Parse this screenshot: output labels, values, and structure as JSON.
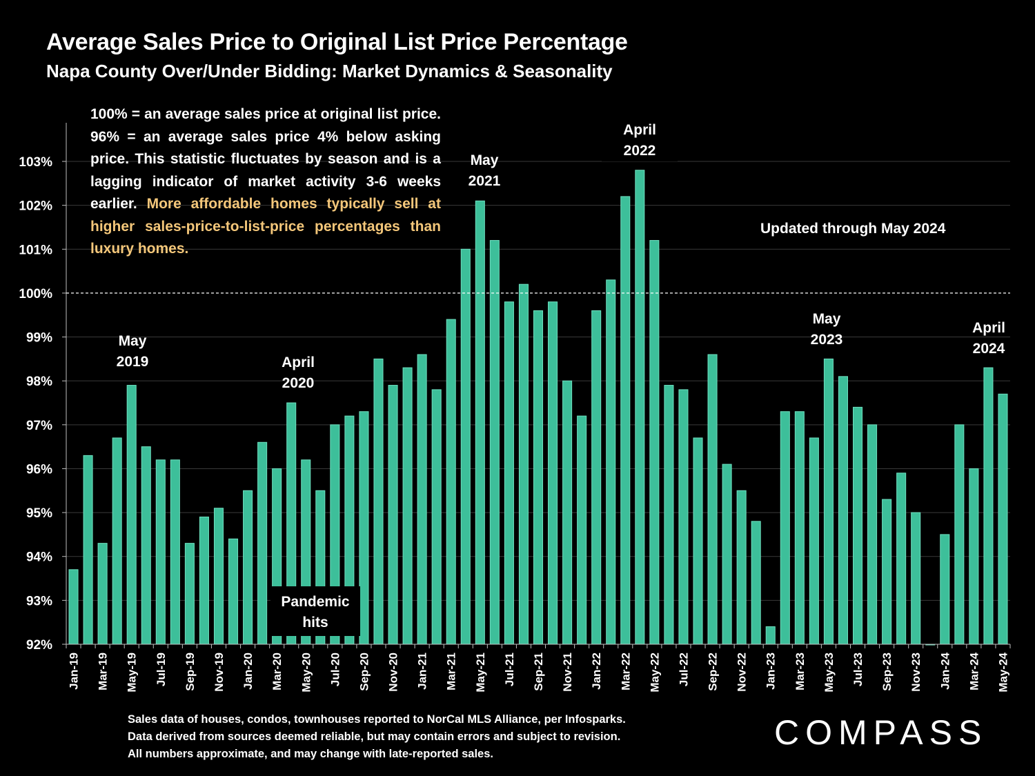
{
  "header": {
    "title": "Average Sales Price to Original List Price Percentage",
    "subtitle": "Napa County Over/Under Bidding: Market Dynamics & Seasonality"
  },
  "description": {
    "plain": "100% = an average sales price at original list price. 96% = an average sales price 4% below asking price. This statistic fluctuates by season and is a lagging indicator of market activity 3-6 weeks earlier.",
    "highlight": "More affordable homes typically sell at higher sales-price-to-list-price percentages than luxury homes."
  },
  "updated_note": "Updated through May 2024",
  "pandemic_note": {
    "line1": "Pandemic",
    "line2": "hits"
  },
  "annotations": [
    {
      "month": "May",
      "year": "2019"
    },
    {
      "month": "April",
      "year": "2020"
    },
    {
      "month": "May",
      "year": "2021"
    },
    {
      "month": "April",
      "year": "2022"
    },
    {
      "month": "May",
      "year": "2023"
    },
    {
      "month": "April",
      "year": "2024"
    }
  ],
  "footer": {
    "line1": "Sales data of houses, condos, townhouses reported to NorCal MLS Alliance, per Infosparks.",
    "line2": "Data derived from sources deemed reliable, but may contain errors and subject to revision.",
    "line3": "All numbers approximate, and may change with late-reported sales."
  },
  "logo_text": "COMPASS",
  "colors": {
    "bar": "#3dbf9a",
    "background": "#000000",
    "highlight": "#f4c77a"
  },
  "chart_data": {
    "type": "bar",
    "title": "Average Sales Price to Original List Price Percentage",
    "xlabel": "",
    "ylabel": "",
    "ylim": [
      92,
      103.5
    ],
    "yticks": [
      92,
      93,
      94,
      95,
      96,
      97,
      98,
      99,
      100,
      101,
      102,
      103
    ],
    "ytick_suffix": "%",
    "reference_line": 100,
    "categories": [
      "Jan-19",
      "Feb-19",
      "Mar-19",
      "Apr-19",
      "May-19",
      "Jun-19",
      "Jul-19",
      "Aug-19",
      "Sep-19",
      "Oct-19",
      "Nov-19",
      "Dec-19",
      "Jan-20",
      "Feb-20",
      "Mar-20",
      "Apr-20",
      "May-20",
      "Jun-20",
      "Jul-20",
      "Aug-20",
      "Sep-20",
      "Oct-20",
      "Nov-20",
      "Dec-20",
      "Jan-21",
      "Feb-21",
      "Mar-21",
      "Apr-21",
      "May-21",
      "Jun-21",
      "Jul-21",
      "Aug-21",
      "Sep-21",
      "Oct-21",
      "Nov-21",
      "Dec-21",
      "Jan-22",
      "Feb-22",
      "Mar-22",
      "Apr-22",
      "May-22",
      "Jun-22",
      "Jul-22",
      "Aug-22",
      "Sep-22",
      "Oct-22",
      "Nov-22",
      "Dec-22",
      "Jan-23",
      "Feb-23",
      "Mar-23",
      "Apr-23",
      "May-23",
      "Jun-23",
      "Jul-23",
      "Aug-23",
      "Sep-23",
      "Oct-23",
      "Nov-23",
      "Dec-23",
      "Jan-24",
      "Feb-24",
      "Mar-24",
      "Apr-24",
      "May-24"
    ],
    "xtick_labels": [
      "Jan-19",
      "Mar-19",
      "May-19",
      "Jul-19",
      "Sep-19",
      "Nov-19",
      "Jan-20",
      "Mar-20",
      "May-20",
      "Jul-20",
      "Sep-20",
      "Nov-20",
      "Jan-21",
      "Mar-21",
      "May-21",
      "Jul-21",
      "Sep-21",
      "Nov-21",
      "Jan-22",
      "Mar-22",
      "May-22",
      "Jul-22",
      "Sep-22",
      "Nov-22",
      "Jan-23",
      "Mar-23",
      "May-23",
      "Jul-23",
      "Sep-23",
      "Nov-23",
      "Jan-24",
      "Mar-24",
      "May-24"
    ],
    "values": [
      93.7,
      96.3,
      94.3,
      96.7,
      97.9,
      96.5,
      96.2,
      96.2,
      94.3,
      94.9,
      95.1,
      94.4,
      95.5,
      96.6,
      96.0,
      97.5,
      96.2,
      95.5,
      97.0,
      97.2,
      97.3,
      98.5,
      97.9,
      98.3,
      98.6,
      97.8,
      99.4,
      101.0,
      102.1,
      101.2,
      99.8,
      100.2,
      99.6,
      99.8,
      98.0,
      97.2,
      99.6,
      100.3,
      102.2,
      102.8,
      101.2,
      97.9,
      97.8,
      96.7,
      98.6,
      96.1,
      95.5,
      94.8,
      92.4,
      97.3,
      97.3,
      96.7,
      98.5,
      98.1,
      97.4,
      97.0,
      95.3,
      95.9,
      95.0,
      92.0,
      94.5,
      97.0,
      96.0,
      98.3,
      97.7
    ]
  }
}
